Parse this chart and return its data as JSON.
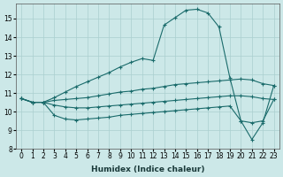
{
  "xlabel": "Humidex (Indice chaleur)",
  "background_color": "#cce8e8",
  "grid_color": "#aacfcf",
  "line_color": "#1a6b6b",
  "xlim": [
    -0.5,
    23.5
  ],
  "ylim": [
    8.0,
    15.8
  ],
  "yticks": [
    8,
    9,
    10,
    11,
    12,
    13,
    14,
    15
  ],
  "xticks": [
    0,
    1,
    2,
    3,
    4,
    5,
    6,
    7,
    8,
    9,
    10,
    11,
    12,
    13,
    14,
    15,
    16,
    17,
    18,
    19,
    20,
    21,
    22,
    23
  ],
  "lines": [
    [
      10.7,
      10.5,
      10.5,
      10.75,
      11.05,
      11.35,
      11.6,
      11.85,
      12.1,
      12.4,
      12.65,
      12.85,
      12.75,
      14.65,
      15.05,
      15.45,
      15.5,
      15.3,
      14.55,
      11.8,
      9.5,
      8.5,
      9.4,
      11.4
    ],
    [
      10.7,
      10.5,
      10.5,
      10.6,
      10.65,
      10.7,
      10.75,
      10.85,
      10.95,
      11.05,
      11.1,
      11.2,
      11.25,
      11.35,
      11.45,
      11.5,
      11.55,
      11.6,
      11.65,
      11.7,
      11.75,
      11.7,
      11.5,
      11.4
    ],
    [
      10.7,
      10.5,
      10.5,
      10.35,
      10.25,
      10.2,
      10.2,
      10.25,
      10.3,
      10.35,
      10.4,
      10.45,
      10.5,
      10.55,
      10.6,
      10.65,
      10.7,
      10.75,
      10.8,
      10.85,
      10.85,
      10.8,
      10.7,
      10.65
    ],
    [
      10.7,
      10.5,
      10.5,
      9.8,
      9.6,
      9.55,
      9.6,
      9.65,
      9.7,
      9.8,
      9.85,
      9.9,
      9.95,
      10.0,
      10.05,
      10.1,
      10.15,
      10.2,
      10.25,
      10.3,
      9.5,
      9.4,
      9.5,
      10.65
    ]
  ]
}
